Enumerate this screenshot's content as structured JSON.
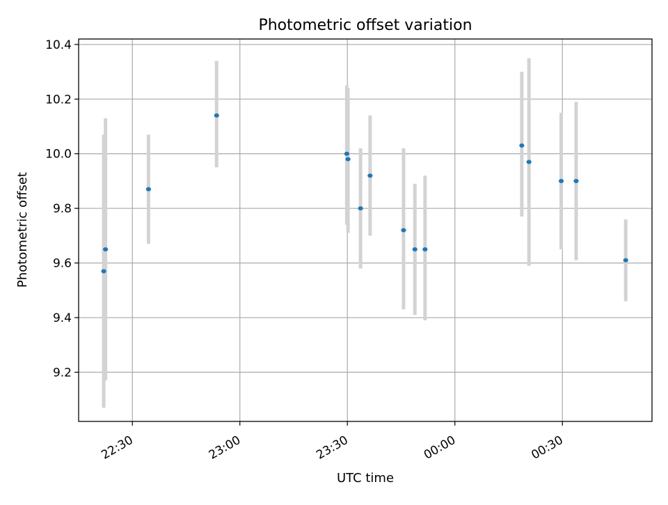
{
  "chart_data": {
    "type": "scatter",
    "title": "Photometric offset variation",
    "xlabel": "UTC time",
    "ylabel": "Photometric offset",
    "x_unit": "UTC (HH:MM), spanning two days",
    "xlim": [
      "22:15",
      "00:55"
    ],
    "ylim": [
      9.02,
      10.42
    ],
    "grid": true,
    "legend": "none",
    "x_ticks": [
      {
        "value": "22:30",
        "label": "22:30"
      },
      {
        "value": "23:00",
        "label": "23:00"
      },
      {
        "value": "23:30",
        "label": "23:30"
      },
      {
        "value": "00:00",
        "label": "00:00"
      },
      {
        "value": "00:30",
        "label": "00:30"
      }
    ],
    "y_ticks": [
      9.2,
      9.4,
      9.6,
      9.8,
      10.0,
      10.2,
      10.4
    ],
    "y_tick_labels": [
      "9.2",
      "9.4",
      "9.6",
      "9.8",
      "10.0",
      "10.2",
      "10.4"
    ],
    "marker_color": "#1f77b4",
    "errorbar_color": "#d3d3d3",
    "points": [
      {
        "x": "22:22",
        "y": 9.57,
        "yerr_low": 9.07,
        "yerr_high": 10.07
      },
      {
        "x": "22:22:30",
        "y": 9.65,
        "yerr_low": 9.17,
        "yerr_high": 10.13
      },
      {
        "x": "22:34:30",
        "y": 9.87,
        "yerr_low": 9.67,
        "yerr_high": 10.07
      },
      {
        "x": "22:53:30",
        "y": 10.14,
        "yerr_low": 9.95,
        "yerr_high": 10.34
      },
      {
        "x": "23:29:50",
        "y": 10.0,
        "yerr_low": 9.74,
        "yerr_high": 10.25
      },
      {
        "x": "23:30:10",
        "y": 9.98,
        "yerr_low": 9.71,
        "yerr_high": 10.24
      },
      {
        "x": "23:33:40",
        "y": 9.8,
        "yerr_low": 9.58,
        "yerr_high": 10.02
      },
      {
        "x": "23:36:20",
        "y": 9.92,
        "yerr_low": 9.7,
        "yerr_high": 10.14
      },
      {
        "x": "23:45:40",
        "y": 9.72,
        "yerr_low": 9.43,
        "yerr_high": 10.02
      },
      {
        "x": "23:48:50",
        "y": 9.65,
        "yerr_low": 9.41,
        "yerr_high": 9.89
      },
      {
        "x": "23:51:40",
        "y": 9.65,
        "yerr_low": 9.39,
        "yerr_high": 9.92
      },
      {
        "x": "00:18:40",
        "y": 10.03,
        "yerr_low": 9.77,
        "yerr_high": 10.3
      },
      {
        "x": "00:20:40",
        "y": 9.97,
        "yerr_low": 9.59,
        "yerr_high": 10.35
      },
      {
        "x": "00:29:40",
        "y": 9.9,
        "yerr_low": 9.65,
        "yerr_high": 10.15
      },
      {
        "x": "00:33:50",
        "y": 9.9,
        "yerr_low": 9.61,
        "yerr_high": 10.19
      },
      {
        "x": "00:47:40",
        "y": 9.61,
        "yerr_low": 9.46,
        "yerr_high": 9.76
      }
    ]
  }
}
